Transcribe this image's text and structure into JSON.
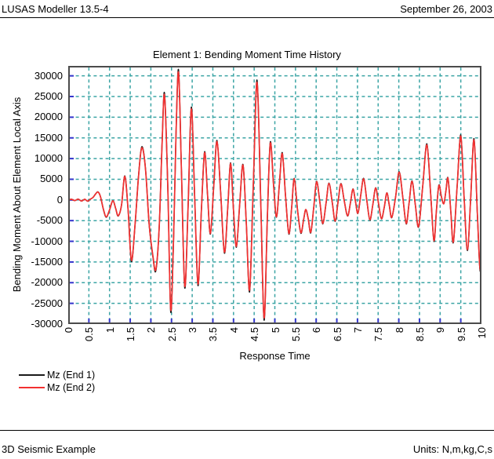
{
  "header": {
    "app_title": "LUSAS Modeller 13.5-4",
    "date": "September 26, 2003"
  },
  "footer": {
    "model_title": "3D Seismic Example",
    "units_label": "Units: N,m,kg,C,s"
  },
  "colors": {
    "grid_teal": "#3CA5A5",
    "tick_blue": "#3535CC",
    "frame_gray": "#4B4B4B",
    "series_black": "#1A1A1A",
    "series_red": "#F23030"
  },
  "chart_data": {
    "type": "line",
    "title": "Element 1: Bending Moment Time History",
    "xlabel": "Response Time",
    "ylabel": "Bending Moment About Element Local Axis",
    "xlim": [
      0,
      10
    ],
    "ylim": [
      -30000,
      30000
    ],
    "grid": true,
    "legend_position": "bottom-left",
    "x_ticks": [
      0,
      0.5,
      1,
      1.5,
      2,
      2.5,
      3,
      3.5,
      4,
      4.5,
      5,
      5.5,
      6,
      6.5,
      7,
      7.5,
      8,
      8.5,
      9,
      9.5,
      10
    ],
    "x_tick_labels": [
      "0",
      "0.5",
      "1",
      "1.5",
      "2",
      "2.5",
      "3",
      "3.5",
      "4",
      "4.5",
      "5",
      "5.5",
      "6",
      "6.5",
      "7",
      "7.5",
      "8",
      "8.5",
      "9",
      "9.5",
      "10"
    ],
    "y_ticks": [
      -30000,
      -25000,
      -20000,
      -15000,
      -10000,
      -5000,
      0,
      5000,
      10000,
      15000,
      20000,
      25000,
      30000
    ],
    "y_tick_labels": [
      "-30000",
      "-25000",
      "-20000",
      "-15000",
      "-10000",
      "-5000",
      "0",
      "5000",
      "10000",
      "15000",
      "20000",
      "25000",
      "30000"
    ],
    "points": [
      [
        0.0,
        0
      ],
      [
        0.08,
        150
      ],
      [
        0.16,
        -150
      ],
      [
        0.24,
        200
      ],
      [
        0.32,
        -250
      ],
      [
        0.4,
        150
      ],
      [
        0.47,
        -300
      ],
      [
        0.53,
        150
      ],
      [
        0.6,
        600
      ],
      [
        0.66,
        1400
      ],
      [
        0.72,
        1900
      ],
      [
        0.78,
        800
      ],
      [
        0.85,
        -2200
      ],
      [
        0.92,
        -4100
      ],
      [
        1.0,
        -2400
      ],
      [
        1.08,
        -200
      ],
      [
        1.15,
        -2100
      ],
      [
        1.21,
        -3800
      ],
      [
        1.29,
        -1200
      ],
      [
        1.37,
        5700
      ],
      [
        1.45,
        -2500
      ],
      [
        1.53,
        -14600
      ],
      [
        1.62,
        -5500
      ],
      [
        1.7,
        5500
      ],
      [
        1.78,
        12600
      ],
      [
        1.87,
        7500
      ],
      [
        1.96,
        -6000
      ],
      [
        2.05,
        -13500
      ],
      [
        2.12,
        -16800
      ],
      [
        2.2,
        -7000
      ],
      [
        2.27,
        13000
      ],
      [
        2.33,
        25300
      ],
      [
        2.41,
        3000
      ],
      [
        2.48,
        -26500
      ],
      [
        2.55,
        -9000
      ],
      [
        2.61,
        16000
      ],
      [
        2.67,
        30800
      ],
      [
        2.74,
        7000
      ],
      [
        2.82,
        -20800
      ],
      [
        2.9,
        -2000
      ],
      [
        2.98,
        22000
      ],
      [
        3.06,
        500
      ],
      [
        3.14,
        -20300
      ],
      [
        3.22,
        -3000
      ],
      [
        3.3,
        11400
      ],
      [
        3.37,
        1500
      ],
      [
        3.44,
        -8100
      ],
      [
        3.52,
        3000
      ],
      [
        3.6,
        14100
      ],
      [
        3.69,
        1500
      ],
      [
        3.78,
        -12600
      ],
      [
        3.86,
        -2000
      ],
      [
        3.93,
        8800
      ],
      [
        4.0,
        -2500
      ],
      [
        4.07,
        -11200
      ],
      [
        4.15,
        -1000
      ],
      [
        4.23,
        8400
      ],
      [
        4.31,
        -5500
      ],
      [
        4.39,
        -21700
      ],
      [
        4.48,
        4000
      ],
      [
        4.57,
        28400
      ],
      [
        4.66,
        -1000
      ],
      [
        4.74,
        -28500
      ],
      [
        4.82,
        -4000
      ],
      [
        4.89,
        13700
      ],
      [
        4.97,
        3500
      ],
      [
        5.04,
        -4100
      ],
      [
        5.11,
        3800
      ],
      [
        5.18,
        11200
      ],
      [
        5.26,
        800
      ],
      [
        5.34,
        -8100
      ],
      [
        5.41,
        -1500
      ],
      [
        5.47,
        5100
      ],
      [
        5.55,
        -2500
      ],
      [
        5.63,
        -7900
      ],
      [
        5.7,
        -4500
      ],
      [
        5.75,
        -2300
      ],
      [
        5.81,
        -4600
      ],
      [
        5.87,
        -7800
      ],
      [
        5.94,
        -2000
      ],
      [
        6.01,
        4400
      ],
      [
        6.09,
        -500
      ],
      [
        6.16,
        -5700
      ],
      [
        6.24,
        -800
      ],
      [
        6.31,
        4000
      ],
      [
        6.39,
        -700
      ],
      [
        6.46,
        -5100
      ],
      [
        6.53,
        -500
      ],
      [
        6.6,
        3900
      ],
      [
        6.68,
        -200
      ],
      [
        6.76,
        -3800
      ],
      [
        6.83,
        -700
      ],
      [
        6.89,
        2600
      ],
      [
        6.95,
        -300
      ],
      [
        7.01,
        -3200
      ],
      [
        7.08,
        1200
      ],
      [
        7.15,
        5100
      ],
      [
        7.23,
        -400
      ],
      [
        7.3,
        -4800
      ],
      [
        7.37,
        -1200
      ],
      [
        7.44,
        2900
      ],
      [
        7.51,
        -900
      ],
      [
        7.58,
        -4500
      ],
      [
        7.65,
        -1600
      ],
      [
        7.71,
        1700
      ],
      [
        7.77,
        -1300
      ],
      [
        7.83,
        -4200
      ],
      [
        7.92,
        600
      ],
      [
        8.01,
        6700
      ],
      [
        8.1,
        300
      ],
      [
        8.18,
        -5700
      ],
      [
        8.25,
        -600
      ],
      [
        8.32,
        4500
      ],
      [
        8.4,
        -1200
      ],
      [
        8.48,
        -6400
      ],
      [
        8.58,
        3500
      ],
      [
        8.68,
        13300
      ],
      [
        8.77,
        1500
      ],
      [
        8.85,
        -9800
      ],
      [
        8.91,
        -2500
      ],
      [
        8.97,
        3500
      ],
      [
        9.03,
        800
      ],
      [
        9.09,
        -900
      ],
      [
        9.14,
        2200
      ],
      [
        9.19,
        5200
      ],
      [
        9.26,
        -3000
      ],
      [
        9.32,
        -10100
      ],
      [
        9.41,
        3000
      ],
      [
        9.5,
        15400
      ],
      [
        9.58,
        500
      ],
      [
        9.66,
        -12000
      ],
      [
        9.74,
        500
      ],
      [
        9.82,
        14500
      ],
      [
        9.9,
        -3000
      ],
      [
        9.96,
        -16200
      ],
      [
        10.0,
        -15400
      ]
    ],
    "series": [
      {
        "name": "Mz (End 1)",
        "color": "#1A1A1A",
        "scale": 1.02,
        "stroke_width": 1.5
      },
      {
        "name": "Mz (End 2)",
        "color": "#F23030",
        "scale": 1.0,
        "stroke_width": 1.7
      }
    ]
  }
}
